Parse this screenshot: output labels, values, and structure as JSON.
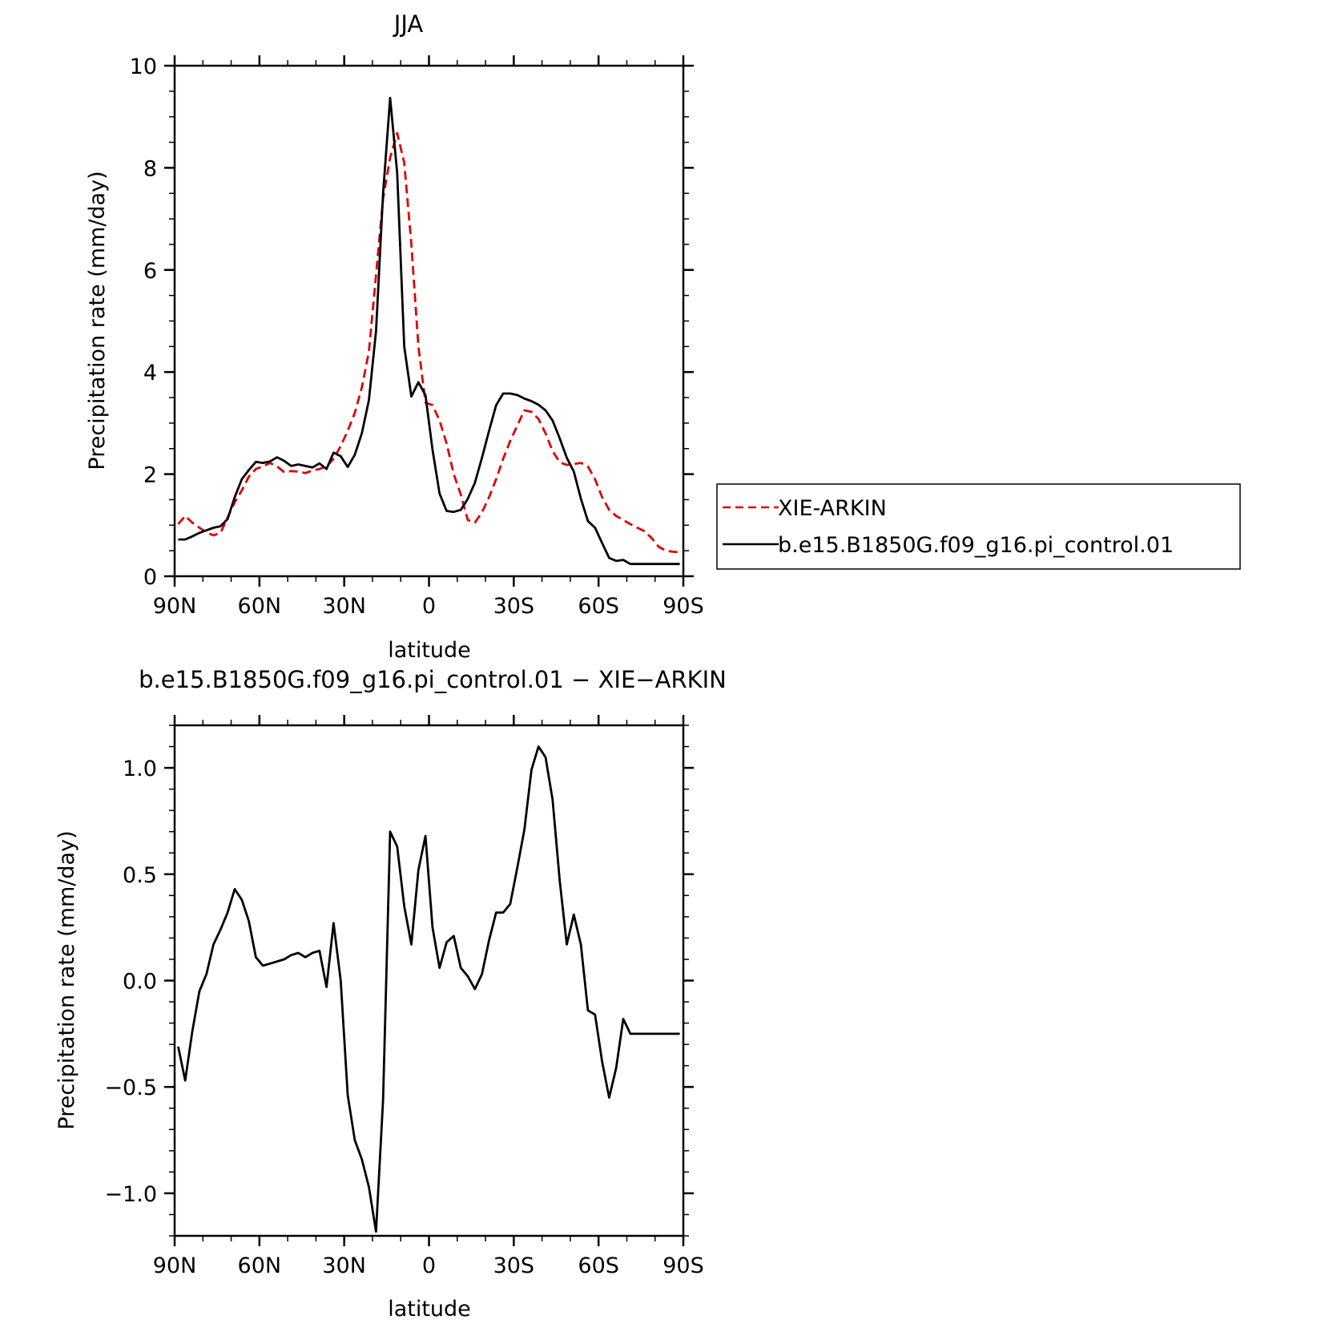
{
  "chart_data": [
    {
      "type": "line",
      "title": "JJA",
      "xlabel": "latitude",
      "ylabel": "Precipitation rate (mm/day)",
      "xlim": [
        90,
        -90
      ],
      "ylim": [
        0,
        10
      ],
      "x_tick_values": [
        90,
        60,
        30,
        0,
        -30,
        -60,
        -90
      ],
      "x_tick_labels": [
        "90N",
        "60N",
        "30N",
        "0",
        "30S",
        "60S",
        "90S"
      ],
      "y_tick_values": [
        0,
        2,
        4,
        6,
        8,
        10
      ],
      "y_tick_labels": [
        "0",
        "2",
        "4",
        "6",
        "8",
        "10"
      ],
      "grid": false,
      "legend_position": "right",
      "series": [
        {
          "name": "XIE-ARKIN",
          "color": "#e00000",
          "dash": "dashed",
          "x": [
            88.75,
            86.25,
            83.75,
            81.25,
            78.75,
            76.25,
            73.75,
            71.25,
            68.75,
            66.25,
            63.75,
            61.25,
            58.75,
            56.25,
            53.75,
            51.25,
            48.75,
            46.25,
            43.75,
            41.25,
            38.75,
            36.25,
            33.75,
            31.25,
            28.75,
            26.25,
            23.75,
            21.25,
            18.75,
            16.25,
            13.75,
            11.25,
            8.75,
            6.25,
            3.75,
            1.25,
            -1.25,
            -3.75,
            -6.25,
            -8.75,
            -11.25,
            -13.75,
            -16.25,
            -18.75,
            -21.25,
            -23.75,
            -26.25,
            -28.75,
            -31.25,
            -33.75,
            -36.25,
            -38.75,
            -41.25,
            -43.75,
            -46.25,
            -48.75,
            -51.25,
            -53.75,
            -56.25,
            -58.75,
            -61.25,
            -63.75,
            -66.25,
            -68.75,
            -71.25,
            -73.75,
            -76.25,
            -78.75,
            -81.25,
            -83.75,
            -86.25,
            -88.75
          ],
          "y": [
            1.02,
            1.18,
            1.05,
            0.95,
            0.86,
            0.8,
            0.85,
            1.15,
            1.45,
            1.68,
            1.95,
            2.1,
            2.15,
            2.22,
            2.15,
            2.04,
            2.06,
            2.05,
            2.02,
            2.07,
            2.1,
            2.15,
            2.3,
            2.55,
            2.85,
            3.2,
            3.7,
            4.4,
            5.9,
            7.4,
            8.2,
            8.68,
            8.1,
            6.5,
            4.5,
            3.4,
            3.35,
            3.05,
            2.6,
            2.0,
            1.6,
            1.1,
            1.05,
            1.25,
            1.55,
            1.9,
            2.3,
            2.65,
            2.95,
            3.25,
            3.22,
            3.08,
            2.8,
            2.45,
            2.23,
            2.18,
            2.2,
            2.22,
            2.15,
            1.9,
            1.55,
            1.3,
            1.18,
            1.1,
            1.02,
            0.95,
            0.88,
            0.75,
            0.58,
            0.5,
            0.48,
            0.47
          ]
        },
        {
          "name": "b.e15.B1850G.f09_g16.pi_control.01",
          "color": "#000000",
          "dash": "solid",
          "x": [
            88.75,
            86.25,
            83.75,
            81.25,
            78.75,
            76.25,
            73.75,
            71.25,
            68.75,
            66.25,
            63.75,
            61.25,
            58.75,
            56.25,
            53.75,
            51.25,
            48.75,
            46.25,
            43.75,
            41.25,
            38.75,
            36.25,
            33.75,
            31.25,
            28.75,
            26.25,
            23.75,
            21.25,
            18.75,
            16.25,
            13.75,
            11.25,
            8.75,
            6.25,
            3.75,
            1.25,
            -1.25,
            -3.75,
            -6.25,
            -8.75,
            -11.25,
            -13.75,
            -16.25,
            -18.75,
            -21.25,
            -23.75,
            -26.25,
            -28.75,
            -31.25,
            -33.75,
            -36.25,
            -38.75,
            -41.25,
            -43.75,
            -46.25,
            -48.75,
            -51.25,
            -53.75,
            -56.25,
            -58.75,
            -61.25,
            -63.75,
            -66.25,
            -68.75,
            -71.25,
            -73.75,
            -76.25,
            -78.75,
            -81.25,
            -83.75,
            -86.25,
            -88.75
          ],
          "y": [
            0.72,
            0.72,
            0.78,
            0.85,
            0.9,
            0.95,
            0.98,
            1.12,
            1.55,
            1.9,
            2.08,
            2.24,
            2.22,
            2.25,
            2.33,
            2.26,
            2.16,
            2.19,
            2.16,
            2.13,
            2.21,
            2.1,
            2.42,
            2.35,
            2.14,
            2.38,
            2.8,
            3.45,
            4.8,
            7.5,
            9.37,
            7.9,
            4.5,
            3.52,
            3.8,
            3.55,
            2.48,
            1.62,
            1.28,
            1.26,
            1.3,
            1.52,
            1.83,
            2.32,
            2.85,
            3.35,
            3.58,
            3.58,
            3.55,
            3.48,
            3.43,
            3.36,
            3.25,
            3.05,
            2.7,
            2.32,
            2.05,
            1.52,
            1.08,
            0.95,
            0.65,
            0.36,
            0.3,
            0.32,
            0.24,
            0.24,
            0.24,
            0.24,
            0.24,
            0.24,
            0.24,
            0.24
          ]
        }
      ]
    },
    {
      "type": "line",
      "title": "b.e15.B1850G.f09_g16.pi_control.01 − XIE−ARKIN",
      "xlabel": "latitude",
      "ylabel": "Precipitation rate (mm/day)",
      "xlim": [
        90,
        -90
      ],
      "ylim": [
        -1.2,
        1.2
      ],
      "x_tick_values": [
        90,
        60,
        30,
        0,
        -30,
        -60,
        -90
      ],
      "x_tick_labels": [
        "90N",
        "60N",
        "30N",
        "0",
        "30S",
        "60S",
        "90S"
      ],
      "y_tick_values": [
        -1.0,
        -0.5,
        0.0,
        0.5,
        1.0
      ],
      "y_tick_labels": [
        "−1.0",
        "−0.5",
        "0.0",
        "0.5",
        "1.0"
      ],
      "grid": false,
      "series": [
        {
          "color": "#000000",
          "dash": "solid",
          "x": [
            88.75,
            86.25,
            83.75,
            81.25,
            78.75,
            76.25,
            73.75,
            71.25,
            68.75,
            66.25,
            63.75,
            61.25,
            58.75,
            56.25,
            53.75,
            51.25,
            48.75,
            46.25,
            43.75,
            41.25,
            38.75,
            36.25,
            33.75,
            31.25,
            28.75,
            26.25,
            23.75,
            21.25,
            18.75,
            16.25,
            13.75,
            11.25,
            8.75,
            6.25,
            3.75,
            1.25,
            -1.25,
            -3.75,
            -6.25,
            -8.75,
            -11.25,
            -13.75,
            -16.25,
            -18.75,
            -21.25,
            -23.75,
            -26.25,
            -28.75,
            -31.25,
            -33.75,
            -36.25,
            -38.75,
            -41.25,
            -43.75,
            -46.25,
            -48.75,
            -51.25,
            -53.75,
            -56.25,
            -58.75,
            -61.25,
            -63.75,
            -66.25,
            -68.75,
            -71.25,
            -73.75,
            -76.25,
            -78.75,
            -81.25,
            -83.75,
            -86.25,
            -88.75
          ],
          "y": [
            -0.31,
            -0.47,
            -0.24,
            -0.05,
            0.03,
            0.17,
            0.24,
            0.32,
            0.43,
            0.38,
            0.28,
            0.11,
            0.07,
            0.08,
            0.09,
            0.1,
            0.12,
            0.13,
            0.11,
            0.13,
            0.14,
            -0.03,
            0.27,
            0.0,
            -0.54,
            -0.75,
            -0.84,
            -0.97,
            -1.18,
            -0.56,
            0.7,
            0.63,
            0.35,
            0.17,
            0.52,
            0.68,
            0.25,
            0.06,
            0.18,
            0.21,
            0.06,
            0.02,
            -0.04,
            0.03,
            0.19,
            0.32,
            0.32,
            0.36,
            0.53,
            0.71,
            0.99,
            1.1,
            1.05,
            0.85,
            0.47,
            0.17,
            0.31,
            0.17,
            -0.14,
            -0.16,
            -0.38,
            -0.55,
            -0.41,
            -0.18,
            -0.25,
            -0.25,
            -0.25,
            -0.25,
            -0.25,
            -0.25,
            -0.25,
            -0.25
          ]
        }
      ]
    }
  ]
}
